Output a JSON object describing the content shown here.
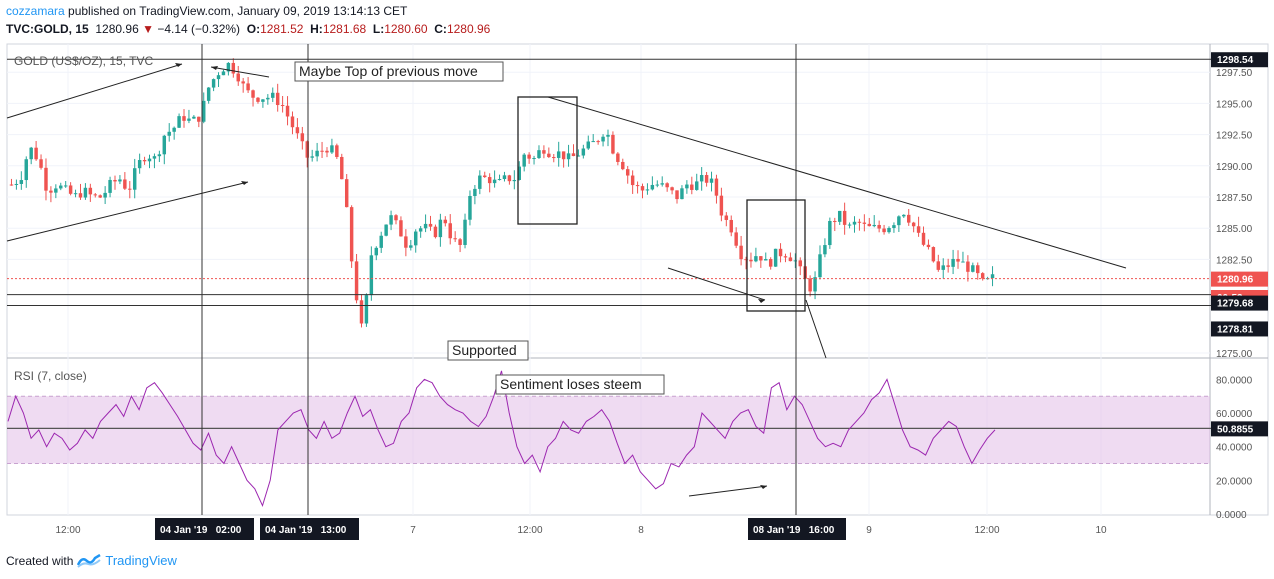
{
  "header": {
    "user": "cozzamara",
    "published": " published on TradingView.com, January 09, 2019 13:14:13 CET",
    "symbol": "TVC:GOLD, 15",
    "last": "1280.96",
    "change_arrow": "▼",
    "change": "−4.14 (−0.32%)",
    "o_label": "O:",
    "o_val": "1281.52",
    "h_label": "H:",
    "h_val": "1281.68",
    "l_label": "L:",
    "l_val": "1280.60",
    "c_label": "C:",
    "c_val": "1280.96"
  },
  "footer": {
    "created": "Created with",
    "brand": "TradingView"
  },
  "colors": {
    "up": "#26a69a",
    "down": "#ef5350",
    "rsi": "#9c27b0",
    "rsi_band": "#e1bee7",
    "last_price_line": "#ef5350"
  },
  "chart_data": [
    {
      "type": "candlestick",
      "title": "GOLD (US$/OZ), 15, TVC",
      "y_ticks": [
        "1297.50",
        "1295.00",
        "1292.50",
        "1290.00",
        "1287.50",
        "1285.00",
        "1282.50",
        "1275.00"
      ],
      "y_range": [
        1275.0,
        1299.5
      ],
      "x_ticks": [
        "12:00",
        "7",
        "12:00",
        "8",
        "9",
        "12:00",
        "10"
      ],
      "price_labels": [
        {
          "label": "1298.54",
          "value": 1298.54,
          "style": "dark"
        },
        {
          "label": "1280.96",
          "value": 1280.96,
          "style": "red"
        },
        {
          "label": "00:53",
          "value": 1279.9,
          "style": "red"
        },
        {
          "label": "1279.68",
          "value": 1279.68,
          "style": "dark"
        },
        {
          "label": "1278.81",
          "value": 1278.81,
          "style": "dark"
        }
      ],
      "horizontal_lines": [
        1298.54,
        1279.68,
        1278.81
      ],
      "time_labels": [
        "04 Jan '19   02:00",
        "04 Jan '19   13:00",
        "08 Jan '19   16:00"
      ],
      "annotations": [
        "Maybe Top of previous move",
        "Supported"
      ],
      "series": [
        {
          "name": "GOLD",
          "close_path": [
            1288.5,
            1289.0,
            1291.5,
            1290.5,
            1288.0,
            1288.5,
            1288.0,
            1287.5,
            1288.0,
            1287.5,
            1287.5,
            1288.5,
            1289.0,
            1288.0,
            1290.0,
            1291.0,
            1290.5,
            1292.5,
            1293.0,
            1294.0,
            1293.5,
            1294.0,
            1296.5,
            1297.5,
            1298.2,
            1297.5,
            1296.0,
            1295.5,
            1295.5,
            1295.5,
            1295.0,
            1293.5,
            1292.0,
            1290.5,
            1291.0,
            1291.5,
            1291.0,
            1288.0,
            1281.0,
            1276.5,
            1283.0,
            1284.5,
            1286.0,
            1285.0,
            1283.5,
            1285.0,
            1285.0,
            1284.5,
            1286.0,
            1284.0,
            1283.5,
            1288.0,
            1289.0,
            1289.0,
            1288.5,
            1289.0,
            1289.0,
            1291.0,
            1290.5,
            1291.5,
            1291.0,
            1291.0,
            1290.5,
            1291.0,
            1291.5,
            1292.0,
            1293.0,
            1291.0,
            1290.0,
            1288.5,
            1288.0,
            1288.5,
            1288.5,
            1288.0,
            1287.5,
            1288.5,
            1288.5,
            1289.0,
            1288.5,
            1286.0,
            1285.0,
            1283.0,
            1282.5,
            1283.0,
            1282.0,
            1283.0,
            1283.0,
            1282.5,
            1281.0,
            1280.0,
            1283.0,
            1285.5,
            1286.0,
            1285.0,
            1285.5,
            1285.0,
            1285.0,
            1285.0,
            1285.5,
            1286.5,
            1285.5,
            1284.0,
            1283.0,
            1281.5,
            1282.0,
            1282.5,
            1282.0,
            1281.5,
            1280.5,
            1281.0
          ]
        }
      ]
    },
    {
      "type": "line",
      "title": "RSI (7, close)",
      "annotation": "Sentiment loses steem",
      "last_value_label": "50.8855",
      "y_ticks": [
        "80.0000",
        "60.0000",
        "40.0000",
        "20.0000",
        "0.0000"
      ],
      "y_range": [
        0,
        85
      ],
      "band": [
        30,
        70
      ],
      "midline": 50.8855,
      "series": [
        {
          "name": "RSI",
          "values": [
            55,
            70,
            60,
            45,
            50,
            40,
            48,
            45,
            38,
            42,
            50,
            45,
            55,
            60,
            65,
            58,
            70,
            62,
            75,
            78,
            72,
            65,
            58,
            50,
            42,
            38,
            48,
            35,
            30,
            40,
            30,
            20,
            15,
            5,
            20,
            50,
            55,
            60,
            62,
            50,
            45,
            55,
            45,
            48,
            60,
            70,
            58,
            62,
            50,
            40,
            42,
            55,
            60,
            75,
            80,
            78,
            70,
            65,
            62,
            60,
            55,
            52,
            58,
            70,
            85,
            60,
            40,
            30,
            35,
            25,
            40,
            45,
            55,
            50,
            48,
            55,
            58,
            62,
            55,
            42,
            30,
            35,
            25,
            20,
            15,
            18,
            30,
            28,
            35,
            40,
            60,
            55,
            50,
            45,
            55,
            60,
            62,
            52,
            48,
            75,
            78,
            62,
            70,
            65,
            55,
            45,
            40,
            42,
            40,
            50,
            55,
            60,
            68,
            72,
            80,
            65,
            50,
            40,
            38,
            35,
            45,
            50,
            55,
            52,
            40,
            30,
            38,
            45,
            50
          ]
        }
      ]
    }
  ]
}
